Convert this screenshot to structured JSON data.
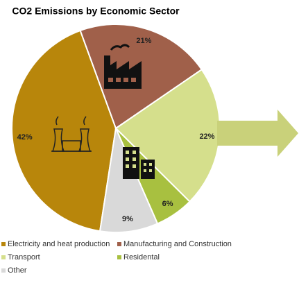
{
  "chart_data": {
    "type": "pie",
    "title": "CO2 Emissions by Economic Sector",
    "categories": [
      "Electricity and heat production",
      "Manufacturing and Construction",
      "Transport",
      "Residental",
      "Other"
    ],
    "values": [
      42,
      21,
      22,
      6,
      9
    ],
    "value_labels": [
      "42%",
      "21%",
      "22%",
      "6%",
      "9%"
    ],
    "colors": [
      "#b8860b",
      "#a0604a",
      "#d5df8c",
      "#a8c040",
      "#d9d9d9"
    ]
  }
}
